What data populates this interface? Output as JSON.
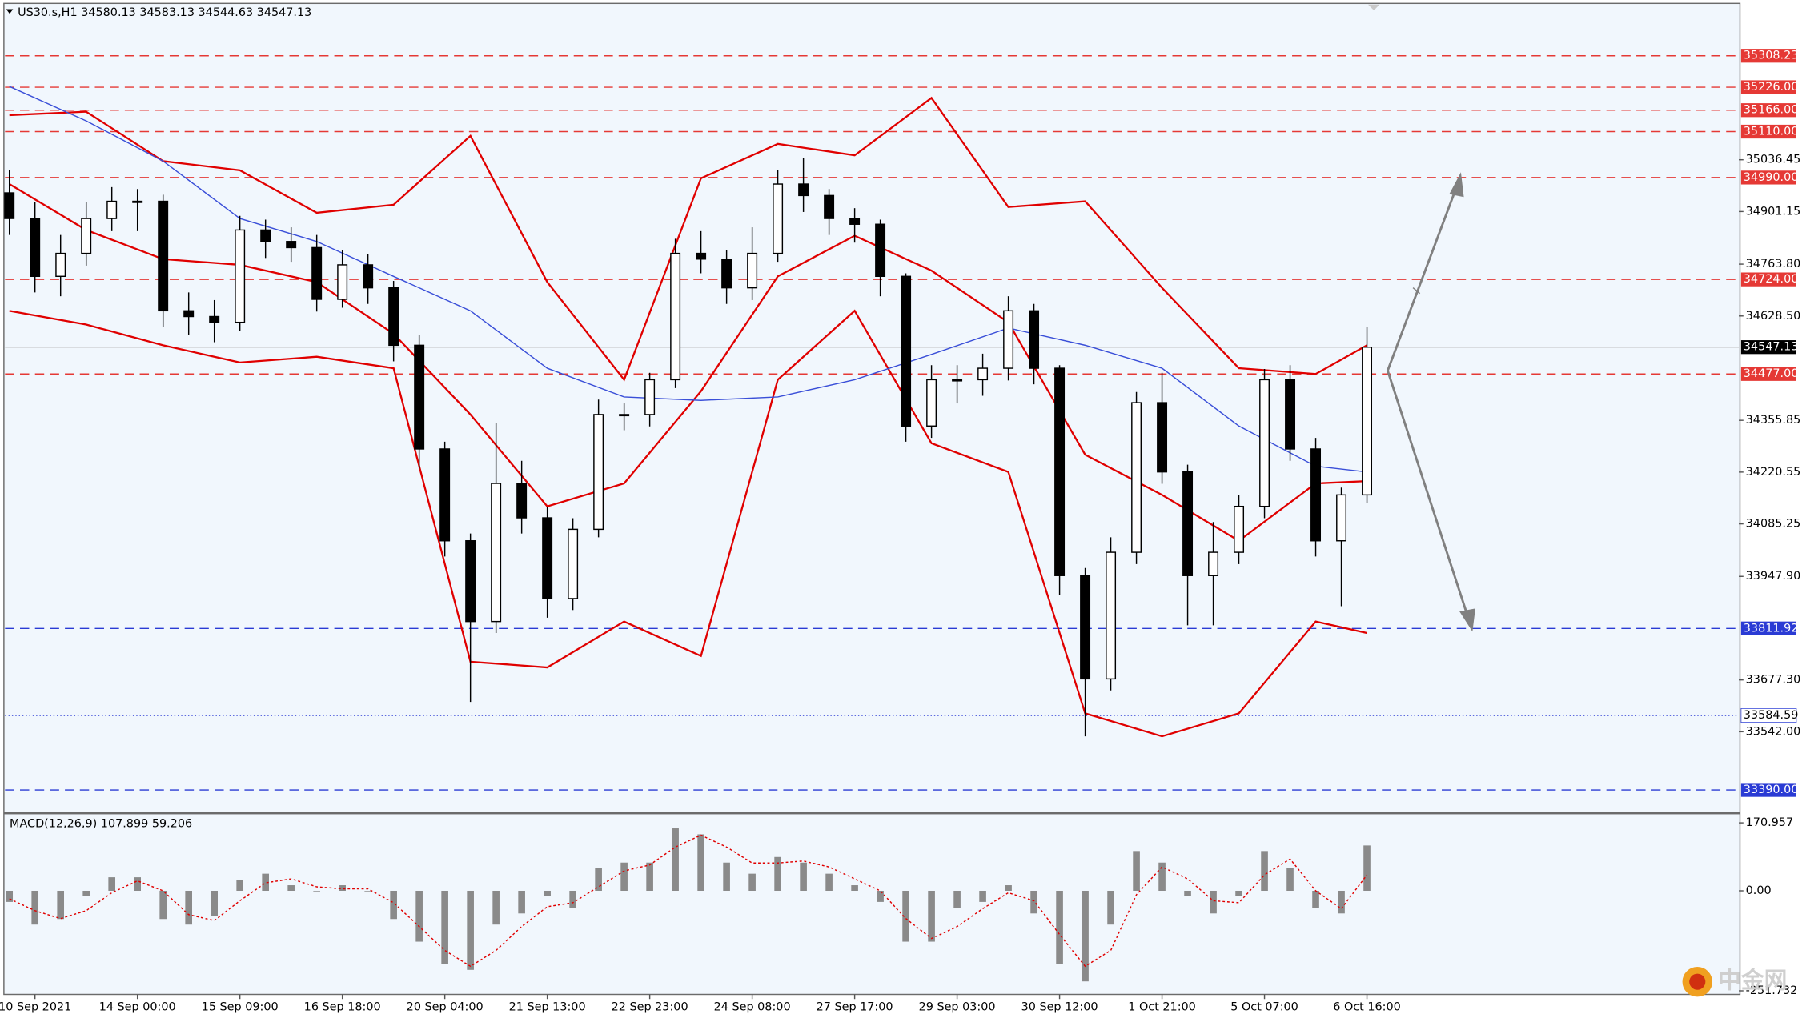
{
  "chart_data": [
    {
      "type": "candlestick",
      "title": "US30.s,H1  34580.13 34583.13 34544.63 34547.13",
      "watermark": "中金网",
      "categories": [
        null,
        "10 Sep 2021",
        null,
        null,
        null,
        "14 Sep 00:00",
        null,
        null,
        null,
        "15 Sep 09:00",
        null,
        null,
        null,
        "16 Sep 18:00",
        null,
        null,
        null,
        "20 Sep 04:00",
        null,
        null,
        null,
        "21 Sep 13:00",
        null,
        null,
        null,
        "22 Sep 23:00",
        null,
        null,
        null,
        "24 Sep 08:00",
        null,
        null,
        null,
        "27 Sep 17:00",
        null,
        null,
        null,
        "29 Sep 03:00",
        null,
        null,
        null,
        "30 Sep 12:00",
        null,
        null,
        null,
        "1 Oct 21:00",
        null,
        null,
        null,
        "5 Oct 07:00",
        null,
        null,
        null,
        "6 Oct 16:00"
      ],
      "open": [
        34950,
        34883,
        34732,
        34792,
        34883,
        34928,
        34928,
        34642,
        34627,
        34612,
        34853,
        34823,
        34807,
        34672,
        34762,
        34702,
        34552,
        34281,
        34041,
        33830,
        34191,
        34101,
        33890,
        34071,
        34371,
        34371,
        34462,
        34792,
        34777,
        34702,
        34792,
        34973,
        34943,
        34883,
        34868,
        34732,
        34341,
        34462,
        34462,
        34492,
        34642,
        34492,
        33950,
        33680,
        34011,
        34402,
        34221,
        33950,
        34011,
        34131,
        34462,
        34281,
        34041,
        34161
      ],
      "high": [
        35010,
        34925,
        34840,
        34925,
        34965,
        34960,
        34945,
        34690,
        34670,
        34890,
        34880,
        34860,
        34840,
        34800,
        34790,
        34720,
        34580,
        34300,
        34060,
        34350,
        34250,
        34130,
        34100,
        34410,
        34400,
        34480,
        34830,
        34850,
        34800,
        34860,
        35010,
        35040,
        34960,
        34910,
        34880,
        34740,
        34500,
        34500,
        34530,
        34680,
        34660,
        34500,
        33970,
        34050,
        34430,
        34480,
        34240,
        34090,
        34160,
        34490,
        34500,
        34310,
        34180,
        34600
      ],
      "low": [
        34840,
        34690,
        34680,
        34760,
        34850,
        34850,
        34600,
        34580,
        34560,
        34590,
        34780,
        34770,
        34640,
        34650,
        34660,
        34510,
        34230,
        34000,
        33620,
        33800,
        34060,
        33840,
        33860,
        34050,
        34330,
        34340,
        34440,
        34740,
        34660,
        34670,
        34770,
        34900,
        34840,
        34820,
        34680,
        34300,
        34310,
        34400,
        34420,
        34460,
        34450,
        33900,
        33530,
        33650,
        33980,
        34190,
        33820,
        33820,
        33980,
        34100,
        34250,
        34000,
        33870,
        34140
      ],
      "close": [
        34883,
        34732,
        34792,
        34883,
        34928,
        34928,
        34642,
        34627,
        34612,
        34853,
        34823,
        34807,
        34672,
        34762,
        34702,
        34552,
        34281,
        34041,
        33830,
        34191,
        34101,
        33890,
        34071,
        34371,
        34371,
        34462,
        34792,
        34777,
        34702,
        34792,
        34973,
        34943,
        34883,
        34868,
        34732,
        34341,
        34462,
        34462,
        34492,
        34642,
        34492,
        33950,
        33680,
        34011,
        34402,
        34221,
        33950,
        34011,
        34131,
        34462,
        34281,
        34041,
        34161,
        34547
      ],
      "overlays": [
        {
          "color": "#e00000",
          "x": [
            0,
            3,
            6,
            9,
            12,
            15,
            18,
            21,
            24,
            27,
            30,
            33,
            36,
            39,
            42,
            45,
            48,
            51,
            53
          ],
          "values": [
            35153,
            35162,
            35033,
            35009,
            34898,
            34919,
            35099,
            34717,
            34462,
            34988,
            35078,
            35048,
            35198,
            34913,
            34928,
            34702,
            34492,
            34477,
            34552
          ]
        },
        {
          "color": "#e00000",
          "x": [
            0,
            3,
            6,
            9,
            12,
            15,
            18,
            21,
            24,
            27,
            30,
            33,
            36,
            39,
            42,
            45,
            48,
            51,
            53
          ],
          "values": [
            34973,
            34853,
            34777,
            34762,
            34717,
            34582,
            34371,
            34131,
            34191,
            34432,
            34732,
            34838,
            34747,
            34612,
            34266,
            34161,
            34041,
            34191,
            34197
          ]
        },
        {
          "color": "#e00000",
          "x": [
            0,
            3,
            6,
            9,
            12,
            15,
            18,
            21,
            24,
            27,
            30,
            33,
            36,
            39,
            42,
            45,
            48,
            51,
            53
          ],
          "values": [
            34642,
            34606,
            34552,
            34507,
            34522,
            34492,
            33725,
            33710,
            33830,
            33740,
            34462,
            34642,
            34296,
            34221,
            33590,
            33530,
            33590,
            33830,
            33800
          ]
        },
        {
          "color": "#3a4fd8",
          "x": [
            0,
            3,
            6,
            9,
            12,
            15,
            18,
            21,
            24,
            27,
            30,
            33,
            36,
            39,
            42,
            45,
            48,
            51,
            53
          ],
          "values": [
            35228,
            35138,
            35033,
            34883,
            34823,
            34732,
            34642,
            34492,
            34417,
            34408,
            34417,
            34462,
            34528,
            34597,
            34552,
            34492,
            34341,
            34236,
            34221
          ]
        }
      ],
      "levels": [
        {
          "value": 35308.23,
          "color": "#e53935",
          "style": "dashed"
        },
        {
          "value": 35226,
          "label": "35226.00",
          "color": "#e53935",
          "style": "dashed"
        },
        {
          "value": 35166,
          "label": "35166.00",
          "color": "#e53935",
          "style": "dashed"
        },
        {
          "value": 35110,
          "label": "35110.00",
          "color": "#e53935",
          "style": "dashed"
        },
        {
          "value": 34990,
          "label": "34990.00",
          "color": "#e53935",
          "style": "dashed"
        },
        {
          "value": 34724,
          "label": "34724.00",
          "color": "#e53935",
          "style": "dashed"
        },
        {
          "value": 34477,
          "label": "34477.00",
          "color": "#e53935",
          "style": "dashed"
        },
        {
          "value": 34547.13,
          "color": "#000000",
          "style": "solid"
        },
        {
          "value": 33811.92,
          "color": "#2a3bd4",
          "style": "dashed"
        },
        {
          "value": 33584.59,
          "color": "#2a3bd4",
          "style": "dotted"
        },
        {
          "value": 33390,
          "label": "33390.00",
          "color": "#2a3bd4",
          "style": "dashed"
        }
      ],
      "ylim": [
        33334,
        35442
      ],
      "yticks": [
        35036.45,
        34901.15,
        {
          "value": 34763.8,
          "label": "34763.80"
        },
        {
          "value": 34628.5,
          "label": "34628.50"
        },
        34355.85,
        34220.55,
        34085.25,
        {
          "value": 33947.9,
          "label": "33947.90"
        },
        {
          "value": 33677.3,
          "label": "33677.30"
        },
        {
          "value": 33542,
          "label": "33542.00"
        }
      ]
    },
    {
      "type": "bar",
      "title": "MACD(12,26,9) 107.899 59.206",
      "color": "#8a8a8a",
      "values": [
        -28,
        -85,
        -71,
        -14,
        34,
        34,
        -71,
        -85,
        -63,
        28,
        43,
        14,
        0,
        14,
        0,
        -71,
        -128,
        -185,
        -199,
        -85,
        -57,
        -14,
        -43,
        57,
        71,
        71,
        157,
        142,
        71,
        43,
        85,
        71,
        43,
        14,
        -28,
        -128,
        -128,
        -43,
        -28,
        14,
        -57,
        -185,
        -228,
        -85,
        100,
        71,
        -14,
        -57,
        -14,
        100,
        57,
        -43,
        -57,
        114
      ],
      "signal": {
        "color": "#e00000",
        "values": [
          -20,
          -50,
          -70,
          -50,
          -5,
          25,
          0,
          -60,
          -75,
          -25,
          20,
          30,
          10,
          5,
          5,
          -30,
          -90,
          -150,
          -190,
          -150,
          -90,
          -40,
          -30,
          10,
          50,
          65,
          110,
          140,
          110,
          70,
          70,
          75,
          60,
          30,
          0,
          -70,
          -120,
          -90,
          -45,
          -5,
          -25,
          -110,
          -190,
          -150,
          -10,
          60,
          30,
          -25,
          -30,
          40,
          80,
          0,
          -45,
          40
        ]
      },
      "ylim": [
        -255,
        191
      ],
      "yticks": [
        170.957,
        {
          "value": 0,
          "label": "0.00"
        },
        -251.732
      ]
    }
  ]
}
